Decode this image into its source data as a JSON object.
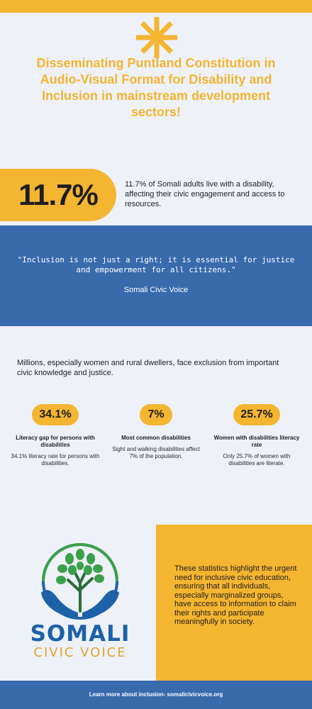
{
  "header": {
    "title": "Disseminating Puntland Constitution in Audio-Visual Format for Disability and Inclusion in mainstream development sectors!",
    "accent_color": "#f4b531"
  },
  "highlight": {
    "value": "11.7%",
    "text": "11.7% of Somali adults live with a disability, affecting their civic engagement and access to resources."
  },
  "quote": {
    "text": "\"Inclusion is not just a right; it is essential for justice and empowerment for all citizens.\"",
    "source": "Somali Civic Voice",
    "band_color": "#386aac"
  },
  "intro": "Millions, especially women and rural dwellers, face exclusion from important civic knowledge and justice.",
  "stats": [
    {
      "value": "34.1%",
      "heading": "Literacy gap for persons with disabilities",
      "description": "34.1% literacy rate for persons with disabilities."
    },
    {
      "value": "7%",
      "heading": "Most common disabilities",
      "description": "Sight and walking disabilities affect 7% of the population."
    },
    {
      "value": "25.7%",
      "heading": "Women with disabilities literacy rate",
      "description": "Only 25.7% of women with disabilities are literate."
    }
  ],
  "logo": {
    "name": "SOMALI",
    "subtitle": "CIVIC VOICE",
    "icon": "tree-in-hands-icon"
  },
  "summary": "These statistics highlight the urgent need for inclusive civic education, ensuring that all individuals, especially marginalized groups, have access to information to claim their rights and participate meaningfully in society.",
  "footer": {
    "text": "Learn more about inclusion- somalicivicvoice.org"
  }
}
